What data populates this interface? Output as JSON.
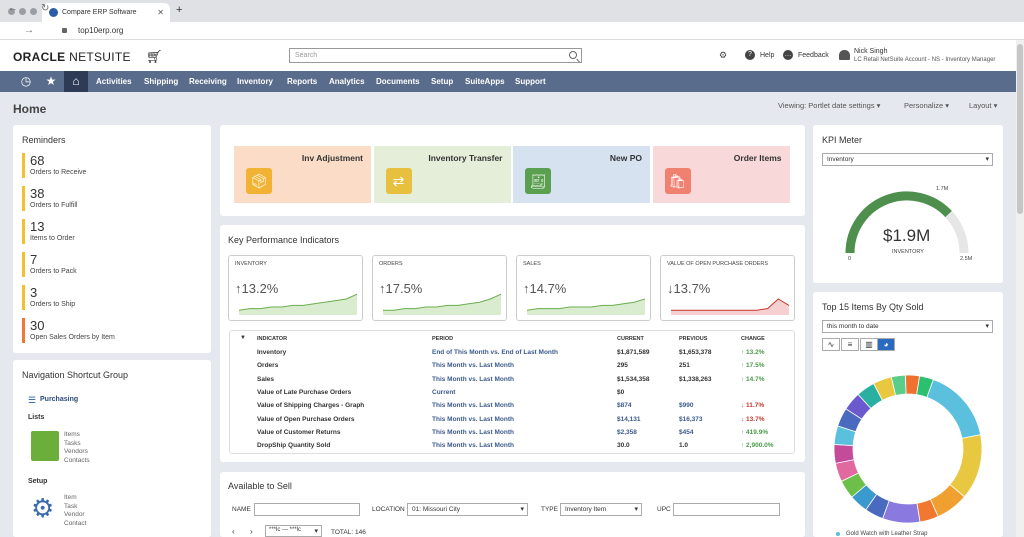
{
  "browser": {
    "tab_title": "Compare ERP Software",
    "url": "top10erp.org"
  },
  "header": {
    "logo_bold": "ORACLE",
    "logo_rest": " NETSUITE",
    "search_placeholder": "Search",
    "help": "Help",
    "feedback": "Feedback",
    "user_name": "Nick Singh",
    "user_role": "LC Retail NetSuite Account - NS - Inventory Manager"
  },
  "nav": [
    "Activities",
    "Shipping",
    "Receiving",
    "Inventory",
    "Reports",
    "Analytics",
    "Documents",
    "Setup",
    "SuiteApps",
    "Support"
  ],
  "page": {
    "title": "Home",
    "viewing": "Viewing: Portlet date settings ▾",
    "personalize": "Personalize ▾",
    "layout": "Layout ▾"
  },
  "reminders": {
    "title": "Reminders",
    "items": [
      {
        "n": "68",
        "l": "Orders to Receive"
      },
      {
        "n": "38",
        "l": "Orders to Fulfill"
      },
      {
        "n": "13",
        "l": "Items to Order"
      },
      {
        "n": "7",
        "l": "Orders to Pack"
      },
      {
        "n": "3",
        "l": "Orders to Ship"
      },
      {
        "n": "30",
        "l": "Open Sales Orders by Item"
      }
    ]
  },
  "nav_group": {
    "title": "Navigation Shortcut Group",
    "purchasing": "Purchasing",
    "lists": "Lists",
    "lists_items": [
      "Items",
      "Tasks",
      "Vendors",
      "Contacts"
    ],
    "setup": "Setup",
    "setup_items": [
      "Item",
      "Task",
      "Vendor",
      "Contact"
    ]
  },
  "shortcuts": [
    {
      "label": "Inv Adjustment",
      "color": "#fbdcc6"
    },
    {
      "label": "Inventory Transfer",
      "color": "#e4eed9"
    },
    {
      "label": "New PO",
      "color": "#d6e2f0"
    },
    {
      "label": "Order Items",
      "color": "#f8d8d8"
    }
  ],
  "kpi": {
    "title": "Key Performance Indicators",
    "boxes": [
      {
        "t": "INVENTORY",
        "v": "↑13.2%"
      },
      {
        "t": "ORDERS",
        "v": "↑17.5%"
      },
      {
        "t": "SALES",
        "v": "↑14.7%"
      },
      {
        "t": "VALUE OF OPEN PURCHASE ORDERS",
        "v": "↓13.7%"
      }
    ],
    "headers": [
      "INDICATOR",
      "PERIOD",
      "CURRENT",
      "PREVIOUS",
      "CHANGE"
    ],
    "rows": [
      {
        "i": "Inventory",
        "p": "End of This Month vs. End of Last Month",
        "c": "$1,871,589",
        "pr": "$1,653,378",
        "ch": "↑ 13.2%"
      },
      {
        "i": "Orders",
        "p": "This Month vs. Last Month",
        "c": "295",
        "pr": "251",
        "ch": "↑ 17.5%"
      },
      {
        "i": "Sales",
        "p": "This Month vs. Last Month",
        "c": "$1,534,358",
        "pr": "$1,338,263",
        "ch": "↑ 14.7%"
      },
      {
        "i": "Value of Late Purchase Orders",
        "p": "Current",
        "c": "$0",
        "pr": "",
        "ch": ""
      },
      {
        "i": "Value of Shipping Charges - Graph",
        "p": "This Month vs. Last Month",
        "c": "$874",
        "pr": "$990",
        "ch": "↓ 11.7%"
      },
      {
        "i": "Value of Open Purchase Orders",
        "p": "This Month vs. Last Month",
        "c": "$14,131",
        "pr": "$16,373",
        "ch": "↓ 13.7%"
      },
      {
        "i": "Value of Customer Returns",
        "p": "This Month vs. Last Month",
        "c": "$2,358",
        "pr": "$454",
        "ch": "↑ 419.9%"
      },
      {
        "i": "DropShip Quantity Sold",
        "p": "This Month vs. Last Month",
        "c": "30.0",
        "pr": "1.0",
        "ch": "↑ 2,900.0%"
      }
    ]
  },
  "available": {
    "title": "Available to Sell",
    "name_lbl": "NAME",
    "loc_lbl": "LOCATION",
    "loc_val": "01: Missouri City",
    "type_lbl": "TYPE",
    "type_val": "Inventory Item",
    "upc_lbl": "UPC",
    "page_sel": "***lc --- ***lc",
    "total": "TOTAL: 146"
  },
  "meter": {
    "title": "KPI Meter",
    "select": "Inventory",
    "value": "$1.9M",
    "label": "INVENTORY",
    "min": "0",
    "max": "2.5M",
    "target": "1.7M"
  },
  "top15": {
    "title": "Top 15 Items By Qty Sold",
    "select": "this month to date",
    "legend": "Gold Watch with Leather Strap"
  },
  "donut": {
    "segments": [
      {
        "v": 16,
        "c": "#5bc0de"
      },
      {
        "v": 14,
        "c": "#e8c840"
      },
      {
        "v": 7,
        "c": "#f0a030"
      },
      {
        "v": 4,
        "c": "#f07830"
      },
      {
        "v": 8,
        "c": "#8a7ae0"
      },
      {
        "v": 4,
        "c": "#4a6ac0"
      },
      {
        "v": 4,
        "c": "#3a9acd"
      },
      {
        "v": 4,
        "c": "#6cc04a"
      },
      {
        "v": 4,
        "c": "#e06aa0"
      },
      {
        "v": 4,
        "c": "#c44a9a"
      },
      {
        "v": 4,
        "c": "#5bc0de"
      },
      {
        "v": 4,
        "c": "#4a6ac0"
      },
      {
        "v": 4,
        "c": "#6a5acd"
      },
      {
        "v": 4,
        "c": "#2ab0a0"
      },
      {
        "v": 4,
        "c": "#e8c840"
      },
      {
        "v": 3,
        "c": "#5acd8a"
      },
      {
        "v": 3,
        "c": "#f07030"
      },
      {
        "v": 3,
        "c": "#2ac070"
      }
    ]
  }
}
